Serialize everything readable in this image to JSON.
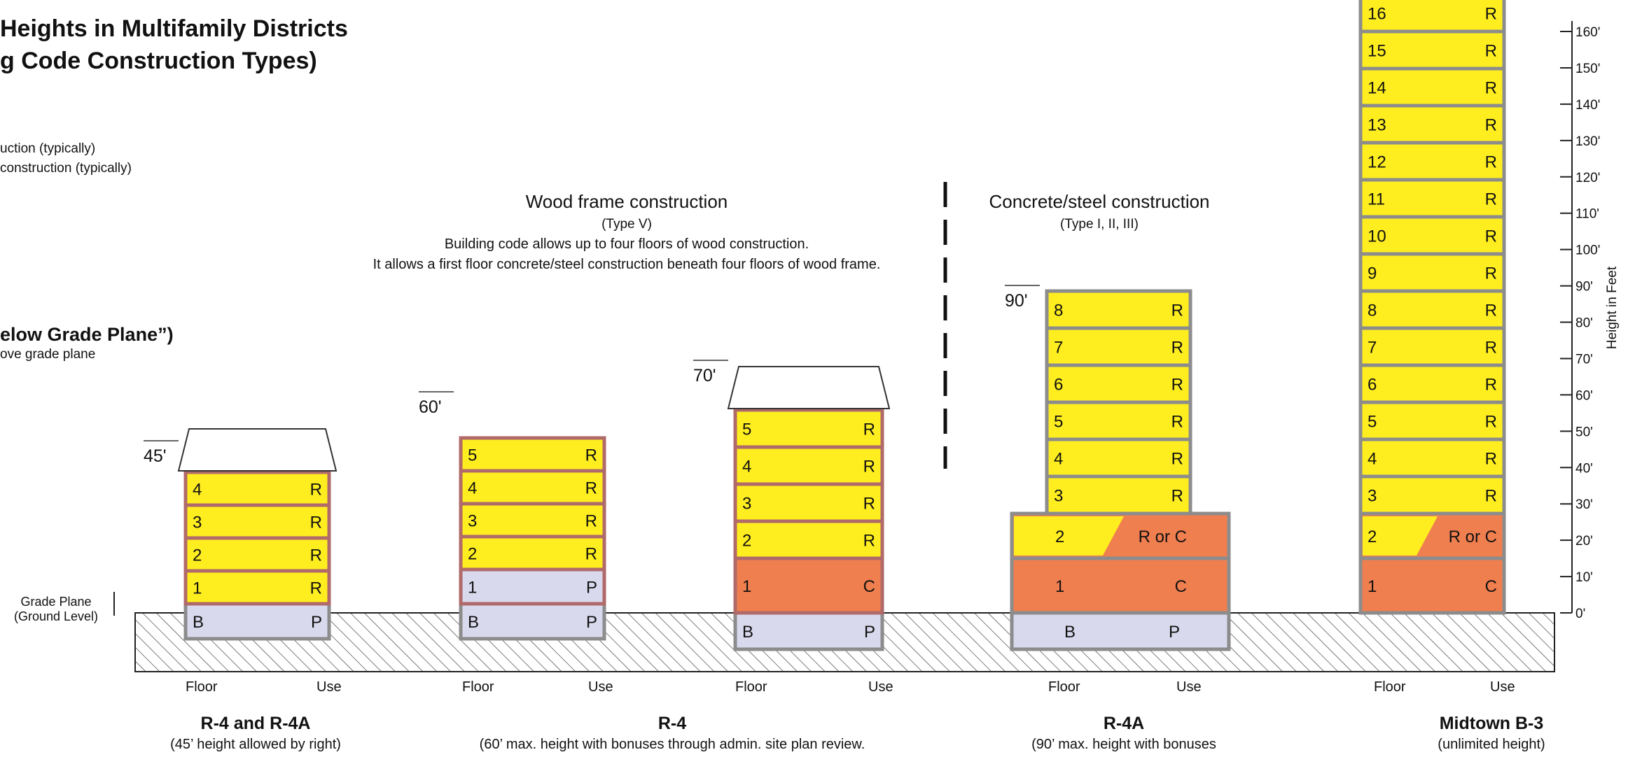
{
  "title": {
    "line1": "Heights in Multifamily Districts",
    "line2": "g Code Construction Types)"
  },
  "legend": {
    "line1": "uction (typically)",
    "line2": " construction (typically)",
    "below_grade_title": "elow Grade Plane”)",
    "below_grade_sub": "ove grade plane"
  },
  "grade_plane": {
    "line1": "Grade Plane",
    "line2": "(Ground Level)"
  },
  "wood_section": {
    "heading": "Wood frame construction",
    "type": "(Type V)",
    "desc1": "Building code allows up to four floors of wood construction.",
    "desc2": "It allows a first floor concrete/steel construction beneath four floors of wood frame."
  },
  "concrete_section": {
    "heading": "Concrete/steel construction",
    "type": "(Type I, II, III)"
  },
  "axis": {
    "label": "Height in Feet",
    "ticks": [
      "160'",
      "150'",
      "140'",
      "130'",
      "120'",
      "110'",
      "100'",
      "90'",
      "80'",
      "70'",
      "60'",
      "50'",
      "40'",
      "30'",
      "20'",
      "10'",
      "0'"
    ]
  },
  "colors": {
    "residential": "#ffee1f",
    "parking": "#d9d9ee",
    "commercial": "#f07f4f",
    "wood_frame": "#b06a6a",
    "steel_frame": "#8c8c8c",
    "hatch": "#444444"
  },
  "column_labels": {
    "floor": "Floor",
    "use": "Use"
  },
  "buildings": [
    {
      "height_label": "45'",
      "caption": "R-4 and R-4A",
      "caption_sub": "(45’ height allowed by right)",
      "floors": [
        {
          "floor": "B",
          "use": "P"
        },
        {
          "floor": "1",
          "use": "R"
        },
        {
          "floor": "2",
          "use": "R"
        },
        {
          "floor": "3",
          "use": "R"
        },
        {
          "floor": "4",
          "use": "R"
        }
      ]
    },
    {
      "height_label": "60'",
      "caption": "R-4",
      "caption_sub": "(60’ max. height with bonuses through admin. site plan review.",
      "floors": [
        {
          "floor": "B",
          "use": "P"
        },
        {
          "floor": "1",
          "use": "P"
        },
        {
          "floor": "2",
          "use": "R"
        },
        {
          "floor": "3",
          "use": "R"
        },
        {
          "floor": "4",
          "use": "R"
        },
        {
          "floor": "5",
          "use": "R"
        }
      ]
    },
    {
      "height_label": "70'",
      "caption": "",
      "caption_sub": "",
      "floors": [
        {
          "floor": "B",
          "use": "P"
        },
        {
          "floor": "1",
          "use": "C"
        },
        {
          "floor": "2",
          "use": "R"
        },
        {
          "floor": "3",
          "use": "R"
        },
        {
          "floor": "4",
          "use": "R"
        },
        {
          "floor": "5",
          "use": "R"
        }
      ]
    },
    {
      "height_label": "90'",
      "caption": "R-4A",
      "caption_sub": "(90’ max. height with bonuses",
      "floors": [
        {
          "floor": "B",
          "use": "P"
        },
        {
          "floor": "1",
          "use": "C"
        },
        {
          "floor": "2",
          "use": "R or C"
        },
        {
          "floor": "3",
          "use": "R"
        },
        {
          "floor": "4",
          "use": "R"
        },
        {
          "floor": "5",
          "use": "R"
        },
        {
          "floor": "6",
          "use": "R"
        },
        {
          "floor": "7",
          "use": "R"
        },
        {
          "floor": "8",
          "use": "R"
        }
      ]
    },
    {
      "height_label": "",
      "caption": "Midtown B-3",
      "caption_sub": "(unlimited height)",
      "floors": [
        {
          "floor": "1",
          "use": "C"
        },
        {
          "floor": "2",
          "use": "R or C"
        },
        {
          "floor": "3",
          "use": "R"
        },
        {
          "floor": "4",
          "use": "R"
        },
        {
          "floor": "5",
          "use": "R"
        },
        {
          "floor": "6",
          "use": "R"
        },
        {
          "floor": "7",
          "use": "R"
        },
        {
          "floor": "8",
          "use": "R"
        },
        {
          "floor": "9",
          "use": "R"
        },
        {
          "floor": "10",
          "use": "R"
        },
        {
          "floor": "11",
          "use": "R"
        },
        {
          "floor": "12",
          "use": "R"
        },
        {
          "floor": "13",
          "use": "R"
        },
        {
          "floor": "14",
          "use": "R"
        },
        {
          "floor": "15",
          "use": "R"
        },
        {
          "floor": "16",
          "use": "R"
        }
      ]
    }
  ]
}
